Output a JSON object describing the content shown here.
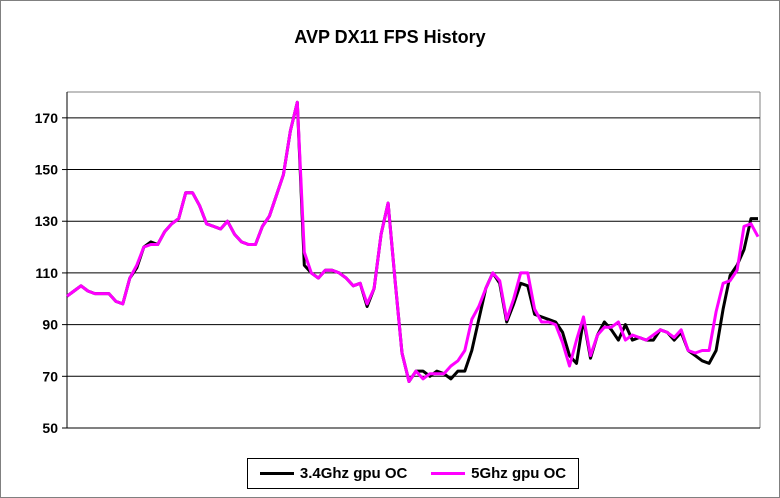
{
  "chart_data": {
    "type": "line",
    "title": "AVP DX11 FPS History",
    "xlabel": "",
    "ylabel": "",
    "ylim": [
      50,
      180
    ],
    "yticks": [
      50,
      70,
      90,
      110,
      130,
      150,
      170
    ],
    "grid": true,
    "legend": "bottom",
    "series": [
      {
        "name": "3.4Ghz gpu OC",
        "color": "#000000",
        "values": [
          101,
          103,
          105,
          103,
          102,
          102,
          102,
          99,
          98,
          108,
          112,
          120,
          122,
          121,
          126,
          129,
          131,
          141,
          141,
          136,
          129,
          128,
          127,
          130,
          125,
          122,
          121,
          121,
          128,
          132,
          140,
          148,
          165,
          176,
          113,
          110,
          108,
          111,
          111,
          110,
          108,
          105,
          106,
          97,
          104,
          125,
          137,
          107,
          79,
          68,
          72,
          72,
          70,
          72,
          71,
          69,
          72,
          72,
          80,
          92,
          104,
          110,
          106,
          91,
          98,
          106,
          105,
          94,
          93,
          92,
          91,
          87,
          78,
          75,
          92,
          77,
          86,
          91,
          88,
          84,
          90,
          84,
          85,
          84,
          84,
          88,
          87,
          84,
          87,
          80,
          78,
          76,
          75,
          80,
          96,
          109,
          113,
          119,
          131,
          131
        ]
      },
      {
        "name": "5Ghz gpu OC",
        "color": "#FF00FF",
        "values": [
          101,
          103,
          105,
          103,
          102,
          102,
          102,
          99,
          98,
          108,
          113,
          120,
          121,
          121,
          126,
          129,
          131,
          141,
          141,
          136,
          129,
          128,
          127,
          130,
          125,
          122,
          121,
          121,
          128,
          132,
          140,
          148,
          165,
          176,
          118,
          110,
          108,
          111,
          111,
          110,
          108,
          105,
          106,
          98,
          104,
          125,
          137,
          107,
          79,
          68,
          72,
          69,
          71,
          71,
          71,
          74,
          76,
          80,
          92,
          97,
          104,
          110,
          107,
          92,
          100,
          110,
          110,
          96,
          91,
          91,
          90,
          83,
          74,
          84,
          93,
          78,
          86,
          89,
          89,
          91,
          84,
          86,
          85,
          84,
          86,
          88,
          87,
          85,
          88,
          80,
          79,
          80,
          80,
          95,
          106,
          107,
          111,
          128,
          129,
          124
        ]
      }
    ]
  }
}
